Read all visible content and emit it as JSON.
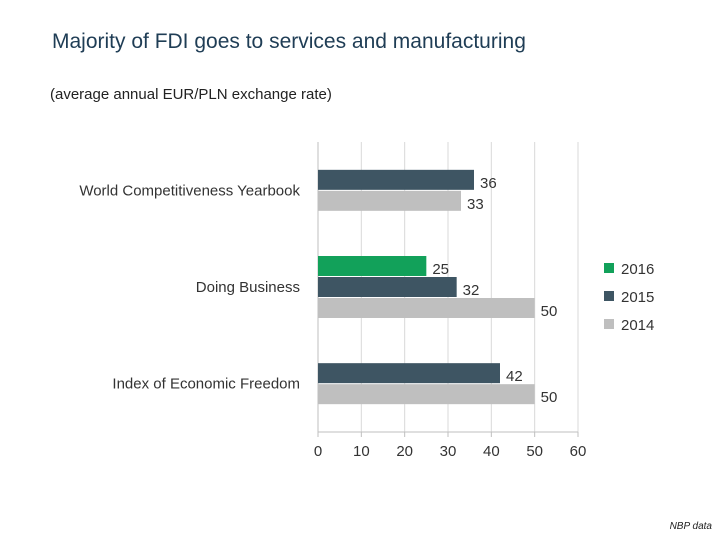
{
  "title": "Majority  of FDI goes to services and manufacturing",
  "subtitle": "(average annual EUR/PLN exchange rate)",
  "source": "NBP data",
  "chart_data": {
    "type": "bar",
    "orientation": "horizontal",
    "categories": [
      "World Competitiveness Yearbook",
      "Doing Business",
      "Index of Economic Freedom"
    ],
    "series": [
      {
        "name": "2016",
        "color": "#12a15a",
        "values": [
          null,
          25,
          null
        ]
      },
      {
        "name": "2015",
        "color": "#3e5563",
        "values": [
          36,
          32,
          42
        ]
      },
      {
        "name": "2014",
        "color": "#bfbfbf",
        "values": [
          33,
          50,
          50
        ]
      }
    ],
    "xlim": [
      0,
      60
    ],
    "xticks": [
      0,
      10,
      20,
      30,
      40,
      50,
      60
    ],
    "legend_position": "right",
    "grid": true
  }
}
